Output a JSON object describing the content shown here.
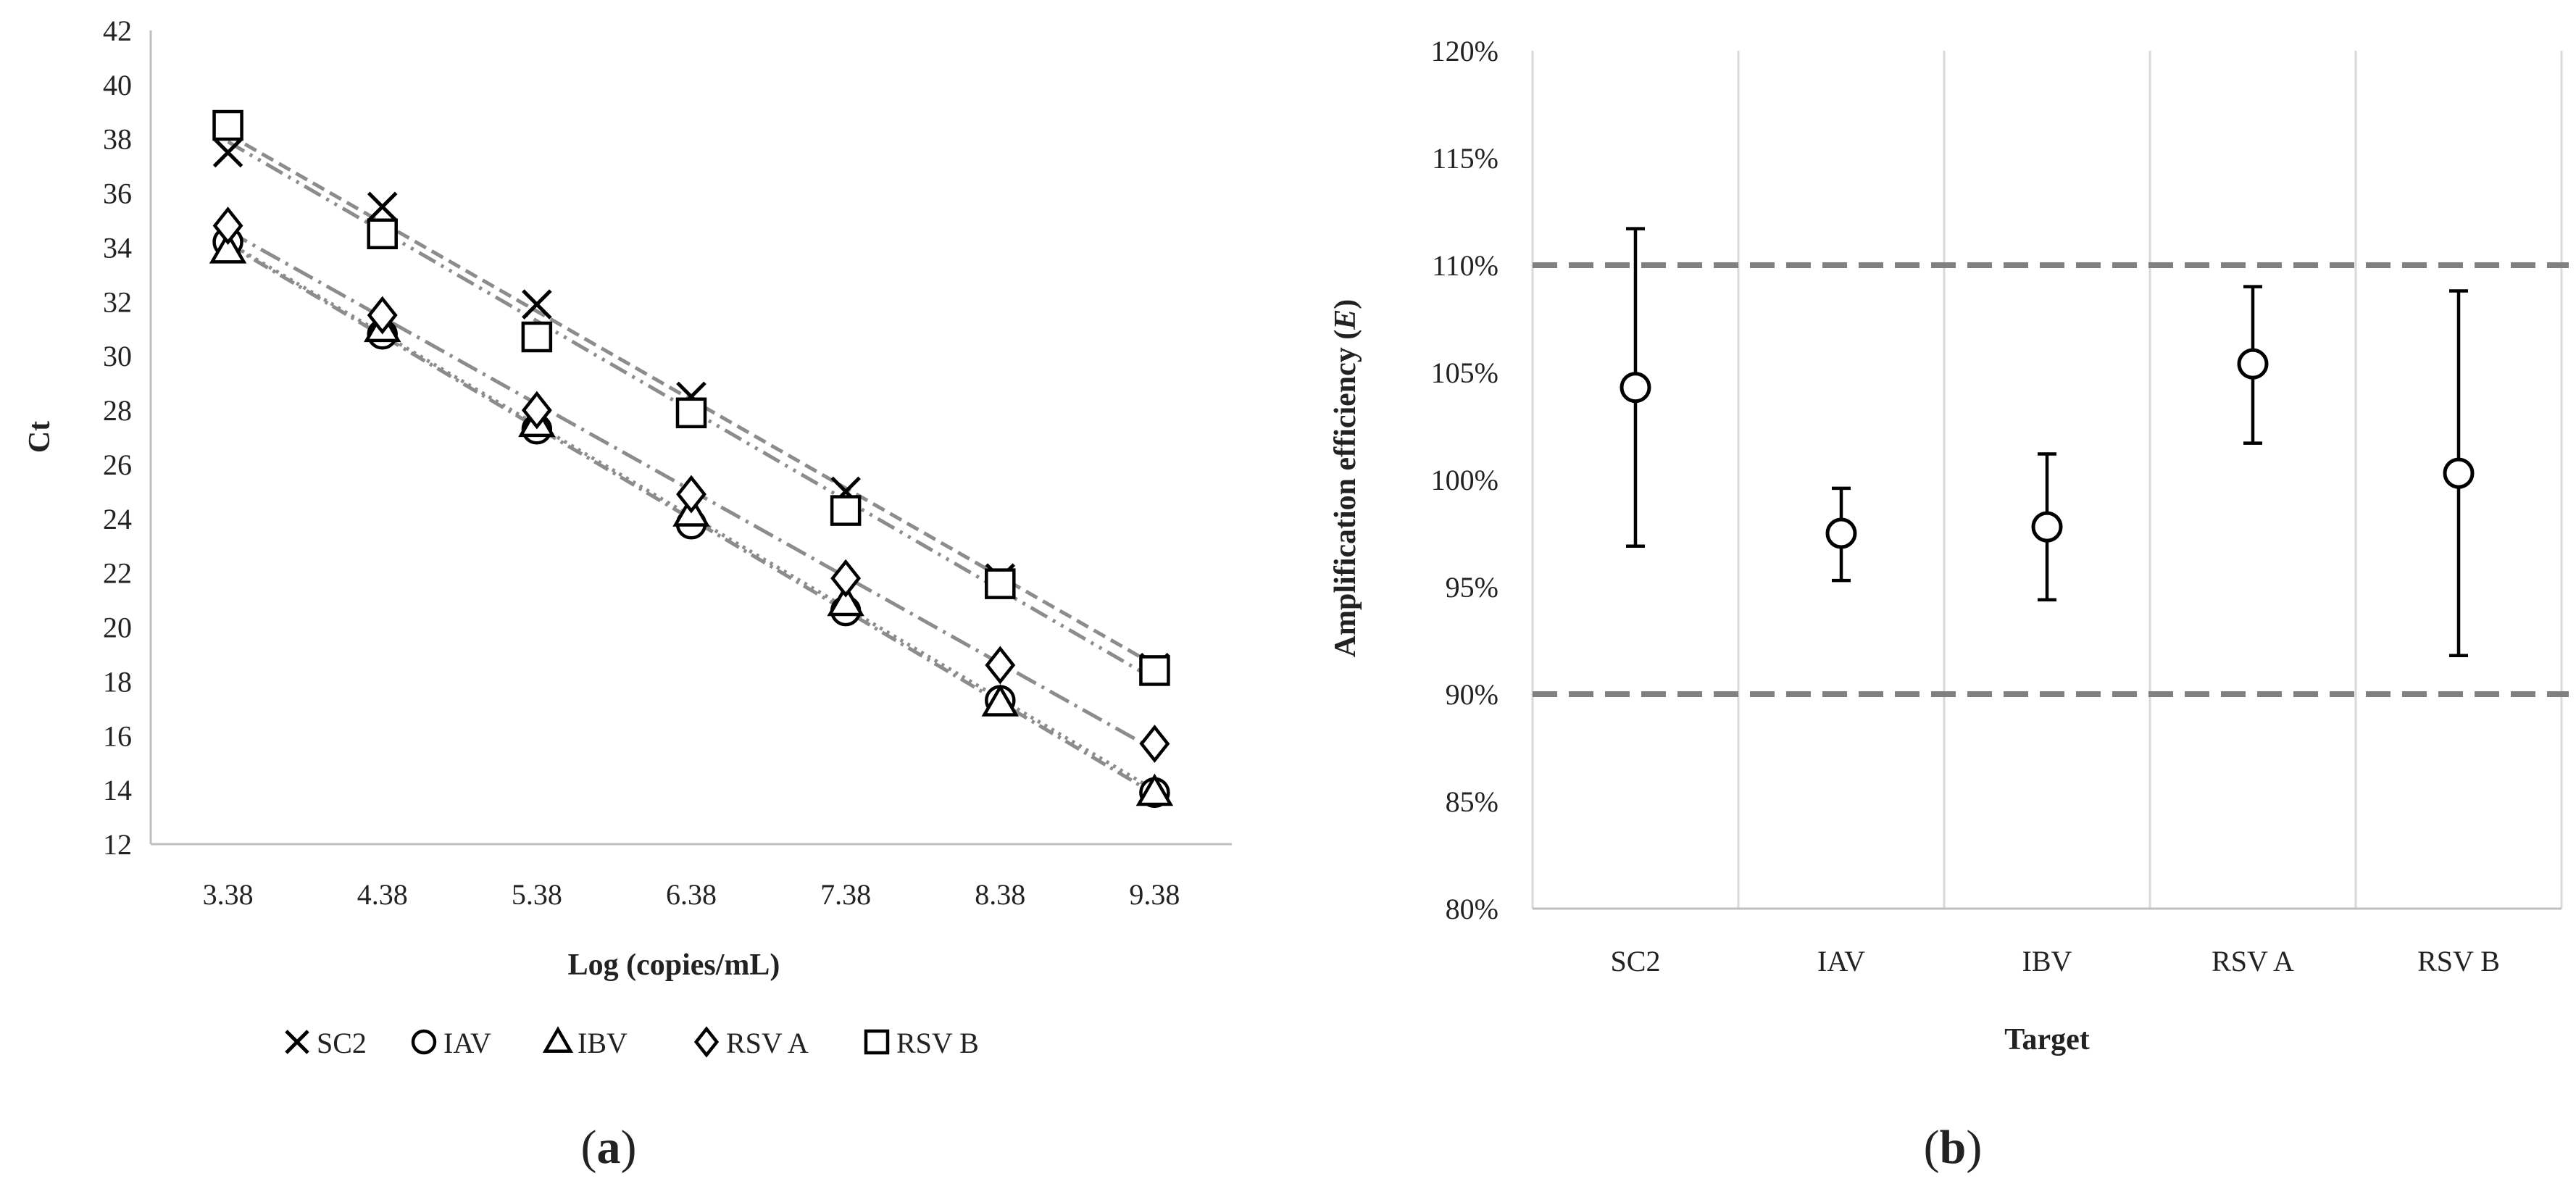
{
  "chart_data": [
    {
      "type": "scatter",
      "panel_label_open": "(",
      "panel_label_letter": "a",
      "panel_label_close": ")",
      "title": "",
      "xlabel": "Log (copies/mL)",
      "ylabel": "Ct",
      "ylim": [
        12,
        42
      ],
      "y_ticks": [
        "12",
        "14",
        "16",
        "18",
        "20",
        "22",
        "24",
        "26",
        "28",
        "30",
        "32",
        "34",
        "36",
        "38",
        "40",
        "42"
      ],
      "categories": [
        "3.38",
        "4.38",
        "5.38",
        "6.38",
        "7.38",
        "8.38",
        "9.38"
      ],
      "x": [
        3.38,
        4.38,
        5.38,
        6.38,
        7.38,
        8.38,
        9.38
      ],
      "trendlines": true,
      "series": [
        {
          "name": "SC2",
          "marker": "x",
          "values": [
            37.5,
            35.5,
            31.9,
            28.5,
            25.0,
            21.8,
            18.5
          ]
        },
        {
          "name": "IAV",
          "marker": "circle",
          "values": [
            34.2,
            30.8,
            27.3,
            23.8,
            20.6,
            17.3,
            13.9
          ]
        },
        {
          "name": "IBV",
          "marker": "triangle",
          "values": [
            33.9,
            31.0,
            27.5,
            24.2,
            20.9,
            17.2,
            13.9
          ]
        },
        {
          "name": "RSV A",
          "marker": "diamond",
          "values": [
            34.8,
            31.5,
            28.0,
            24.9,
            21.8,
            18.6,
            15.7
          ]
        },
        {
          "name": "RSV B",
          "marker": "square",
          "values": [
            38.5,
            34.5,
            30.7,
            27.9,
            24.3,
            21.6,
            18.4
          ]
        }
      ],
      "legend": {
        "position": "bottom",
        "entries": [
          "SC2",
          "IAV",
          "IBV",
          "RSV A",
          "RSV B"
        ]
      }
    },
    {
      "type": "scatter",
      "panel_label_open": "(",
      "panel_label_letter": "b",
      "panel_label_close": ")",
      "title": "",
      "xlabel": "Target",
      "ylabel_main": "Amplification efficiency (",
      "ylabel_italic": "E",
      "ylabel_close": ")",
      "ylim": [
        80,
        120
      ],
      "y_ticks": [
        "80%",
        "85%",
        "90%",
        "95%",
        "100%",
        "105%",
        "110%",
        "115%",
        "120%"
      ],
      "categories": [
        "SC2",
        "IAV",
        "IBV",
        "RSV A",
        "RSV B"
      ],
      "values": [
        104.3,
        97.5,
        97.8,
        105.4,
        100.3
      ],
      "error_low": [
        96.9,
        95.3,
        94.4,
        101.7,
        91.8
      ],
      "error_high": [
        111.7,
        99.6,
        101.2,
        109.0,
        108.8
      ],
      "reference_lines": [
        90,
        110
      ]
    }
  ]
}
